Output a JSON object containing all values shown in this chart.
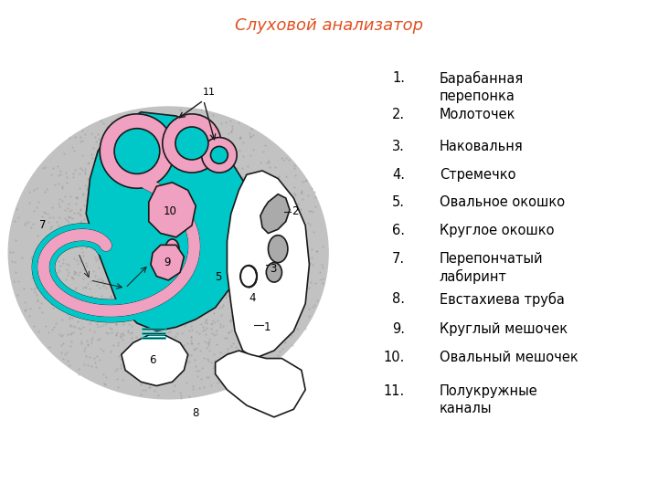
{
  "title": "Слуховой анализатор",
  "title_color": "#E05020",
  "title_bg": "#C8E4F0",
  "fig_bg": "#FFFFFF",
  "cyan_color": "#00C8C8",
  "pink_color": "#F0A0C0",
  "gray_bg": "#B0B0B0",
  "outline_color": "#1a1a1a",
  "font_size_legend": 10.5,
  "font_size_title": 13,
  "legend_items": [
    [
      "1.",
      "Барабанная\nперепонка"
    ],
    [
      "2.",
      "Молоточек"
    ],
    [
      "3.",
      "Наковальня"
    ],
    [
      "4.",
      "Стремечко"
    ],
    [
      "5.",
      "Овальное окошко"
    ],
    [
      "6.",
      "Круглое окошко"
    ],
    [
      "7.",
      "Перепончатый\nлабиринт"
    ],
    [
      "8.",
      "Евстахиева труба"
    ],
    [
      "9.",
      "Круглый мешочек"
    ],
    [
      "10.",
      "Овальный мешочек"
    ],
    [
      "11.",
      "Полукружные\nканалы"
    ]
  ]
}
